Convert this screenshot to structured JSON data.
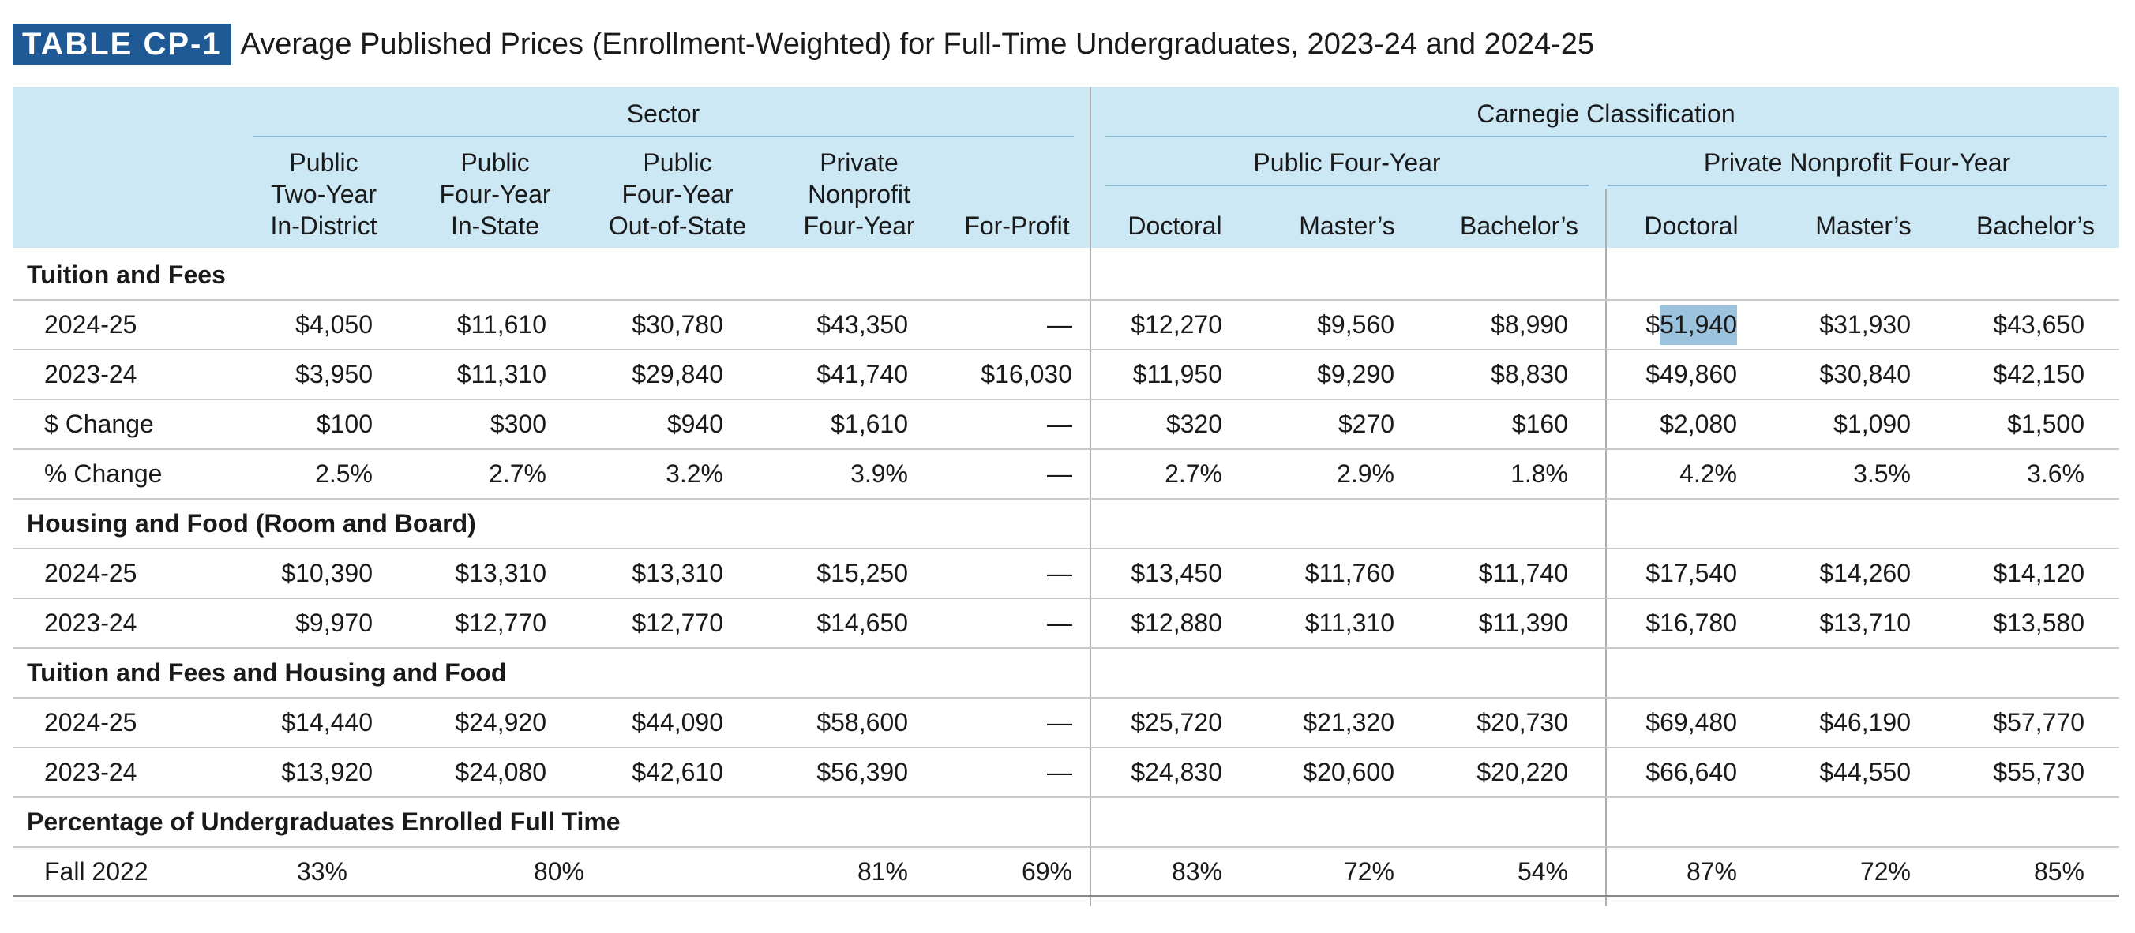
{
  "title": {
    "badge": "TABLE CP-1",
    "text": "Average Published Prices (Enrollment-Weighted) for Full-Time Undergraduates, 2023-24 and 2024-25"
  },
  "header": {
    "group_sector": "Sector",
    "group_carnegie": "Carnegie Classification",
    "subgroup_public": "Public Four-Year",
    "subgroup_private": "Private Nonprofit Four-Year",
    "columns": [
      {
        "l1": "Public",
        "l2": "Two-Year",
        "l3": "In-District"
      },
      {
        "l1": "Public",
        "l2": "Four-Year",
        "l3": "In-State"
      },
      {
        "l1": "Public",
        "l2": "Four-Year",
        "l3": "Out-of-State"
      },
      {
        "l1": "Private",
        "l2": "Nonprofit",
        "l3": "Four-Year"
      },
      {
        "l1": "",
        "l2": "",
        "l3": "For-Profit"
      },
      {
        "l1": "",
        "l2": "",
        "l3": "Doctoral"
      },
      {
        "l1": "",
        "l2": "",
        "l3": "Master’s"
      },
      {
        "l1": "",
        "l2": "",
        "l3": "Bachelor’s"
      },
      {
        "l1": "",
        "l2": "",
        "l3": "Doctoral"
      },
      {
        "l1": "",
        "l2": "",
        "l3": "Master’s"
      },
      {
        "l1": "",
        "l2": "",
        "l3": "Bachelor’s"
      }
    ]
  },
  "sections": [
    {
      "title": "Tuition and Fees",
      "rows": [
        {
          "label": "2024-25",
          "cells": [
            "$4,050",
            "$11,610",
            "$30,780",
            "$43,350",
            "—",
            "$12,270",
            "$9,560",
            "$8,990",
            "$51,940",
            "$31,930",
            "$43,650"
          ]
        },
        {
          "label": "2023-24",
          "cells": [
            "$3,950",
            "$11,310",
            "$29,840",
            "$41,740",
            "$16,030",
            "$11,950",
            "$9,290",
            "$8,830",
            "$49,860",
            "$30,840",
            "$42,150"
          ]
        },
        {
          "label": "$ Change",
          "cells": [
            "$100",
            "$300",
            "$940",
            "$1,610",
            "—",
            "$320",
            "$270",
            "$160",
            "$2,080",
            "$1,090",
            "$1,500"
          ]
        },
        {
          "label": "% Change",
          "cells": [
            "2.5%",
            "2.7%",
            "3.2%",
            "3.9%",
            "—",
            "2.7%",
            "2.9%",
            "1.8%",
            "4.2%",
            "3.5%",
            "3.6%"
          ]
        }
      ]
    },
    {
      "title": "Housing and Food (Room and Board)",
      "rows": [
        {
          "label": "2024-25",
          "cells": [
            "$10,390",
            "$13,310",
            "$13,310",
            "$15,250",
            "—",
            "$13,450",
            "$11,760",
            "$11,740",
            "$17,540",
            "$14,260",
            "$14,120"
          ]
        },
        {
          "label": "2023-24",
          "cells": [
            "$9,970",
            "$12,770",
            "$12,770",
            "$14,650",
            "—",
            "$12,880",
            "$11,310",
            "$11,390",
            "$16,780",
            "$13,710",
            "$13,580"
          ]
        }
      ]
    },
    {
      "title": "Tuition and Fees and Housing and Food",
      "rows": [
        {
          "label": "2024-25",
          "cells": [
            "$14,440",
            "$24,920",
            "$44,090",
            "$58,600",
            "—",
            "$25,720",
            "$21,320",
            "$20,730",
            "$69,480",
            "$46,190",
            "$57,770"
          ]
        },
        {
          "label": "2023-24",
          "cells": [
            "$13,920",
            "$24,080",
            "$42,610",
            "$56,390",
            "—",
            "$24,830",
            "$20,600",
            "$20,220",
            "$66,640",
            "$44,550",
            "$55,730"
          ]
        }
      ]
    },
    {
      "title": "Percentage of Undergraduates Enrolled Full Time",
      "rows": [
        {
          "label": "Fall 2022",
          "cells": [
            "33%",
            "80%",
            "81%",
            "69%",
            "83%",
            "72%",
            "54%",
            "87%",
            "72%",
            "85%"
          ]
        }
      ]
    }
  ],
  "selection": {
    "text": "51,940",
    "color": "#9cc3dd"
  },
  "colors": {
    "badge": "#1f5a96",
    "header_band": "#cce8f5"
  }
}
